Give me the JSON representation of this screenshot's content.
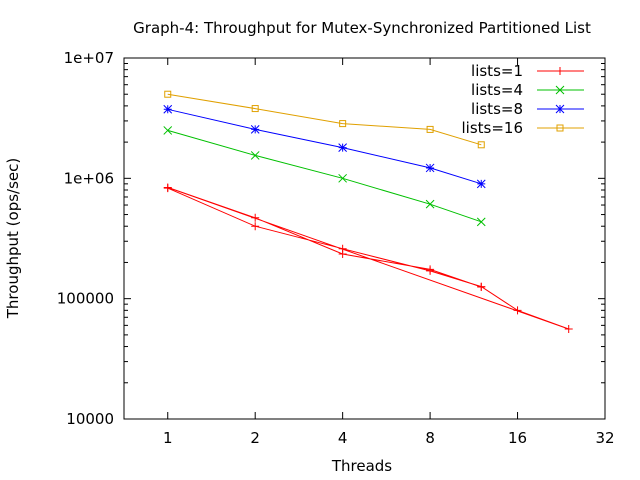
{
  "chart_data": {
    "type": "line",
    "title": "Graph-4: Throughput for Mutex-Synchronized Partitioned List",
    "xlabel": "Threads",
    "ylabel": "Throughput (ops/sec)",
    "xscale": "log2",
    "yscale": "log10",
    "xlim": [
      0.707,
      32
    ],
    "ylim": [
      10000,
      10000000
    ],
    "x_ticks": [
      1,
      2,
      4,
      8,
      16,
      32
    ],
    "x_tick_labels": [
      "1",
      "2",
      "4",
      "8",
      "16",
      "32"
    ],
    "y_ticks": [
      10000,
      100000,
      1000000,
      10000000
    ],
    "y_tick_labels": [
      "10000",
      "100000",
      "1e+06",
      "1e+07"
    ],
    "grid": false,
    "legend_position": "top-right",
    "series": [
      {
        "name": "lists=1",
        "color": "#ff0000",
        "marker": "plus",
        "x": [
          1,
          2,
          4,
          8,
          12,
          16,
          24,
          1,
          2,
          4,
          8,
          12
        ],
        "y": [
          830000,
          400000,
          260000,
          170000,
          126000,
          80000,
          56000,
          840000,
          470000,
          235000,
          175000,
          125000
        ]
      },
      {
        "name": "lists=4",
        "color": "#00c000",
        "marker": "cross",
        "x": [
          1,
          2,
          4,
          8,
          12
        ],
        "y": [
          2500000,
          1550000,
          1000000,
          610000,
          435000
        ]
      },
      {
        "name": "lists=8",
        "color": "#0000ff",
        "marker": "star",
        "x": [
          1,
          2,
          4,
          8,
          12
        ],
        "y": [
          3750000,
          2550000,
          1800000,
          1220000,
          900000
        ]
      },
      {
        "name": "lists=16",
        "color": "#e0a000",
        "marker": "square",
        "x": [
          1,
          2,
          4,
          8,
          12
        ],
        "y": [
          5000000,
          3800000,
          2850000,
          2550000,
          1900000
        ]
      }
    ]
  }
}
